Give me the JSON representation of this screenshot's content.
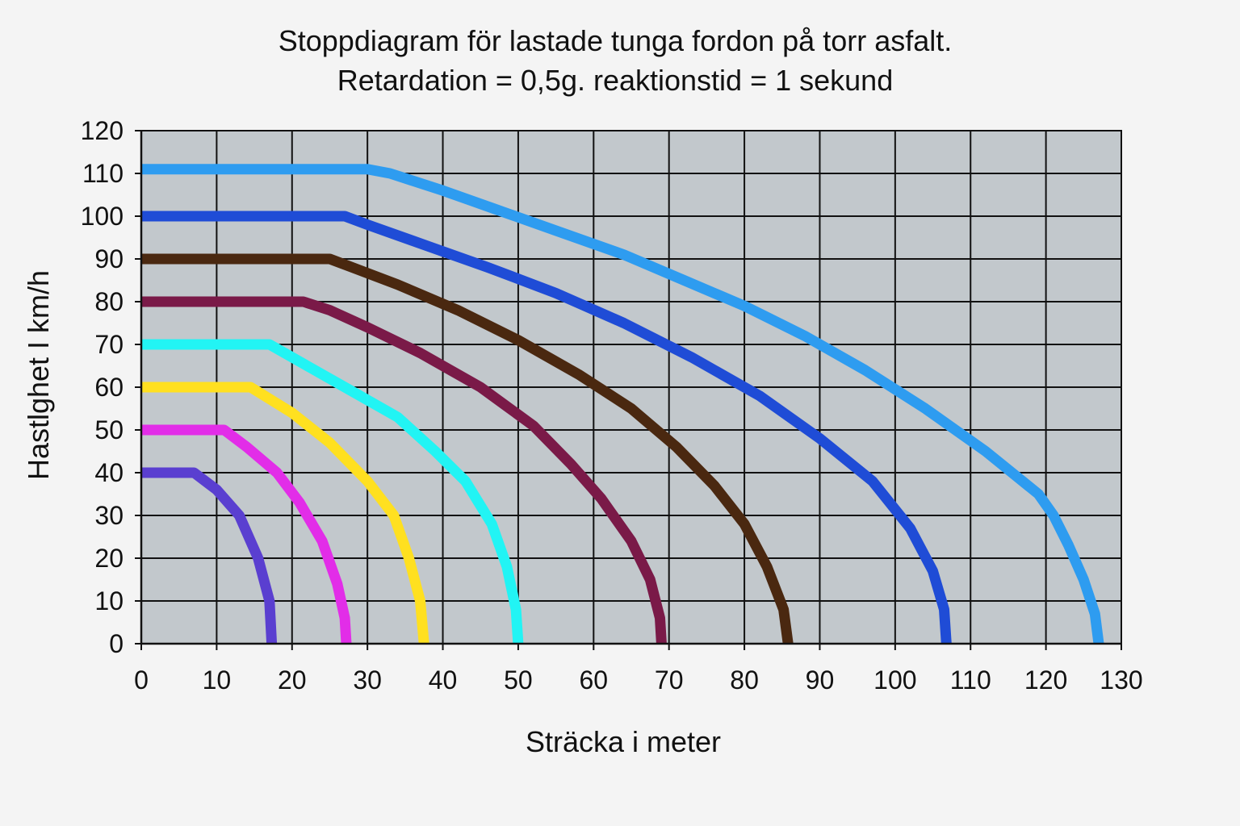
{
  "chart_data": {
    "type": "line",
    "title": "Stoppdiagram för lastade tunga fordon på torr asfalt.",
    "subtitle": "Retardation = 0,5g. reaktionstid = 1 sekund",
    "xlabel": "Sträcka i meter",
    "ylabel": "Hastlghet I km/h",
    "xlim": [
      0,
      130
    ],
    "ylim": [
      0,
      120
    ],
    "x_ticks": [
      "0",
      "10",
      "20",
      "30",
      "40",
      "50",
      "60",
      "70",
      "80",
      "90",
      "100",
      "110",
      "120",
      "130"
    ],
    "y_ticks": [
      "0",
      "10",
      "20",
      "30",
      "40",
      "50",
      "60",
      "70",
      "80",
      "90",
      "100",
      "110",
      "120"
    ],
    "grid": true,
    "background": "#c2c8cc",
    "series": [
      {
        "color": "#5a3fd0",
        "points": [
          [
            0,
            40
          ],
          [
            7,
            40
          ],
          [
            10,
            36
          ],
          [
            13,
            30
          ],
          [
            15.5,
            20
          ],
          [
            17,
            10
          ],
          [
            17.3,
            0
          ]
        ]
      },
      {
        "color": "#e22de8",
        "points": [
          [
            0,
            50
          ],
          [
            11,
            50
          ],
          [
            14,
            46
          ],
          [
            18,
            40
          ],
          [
            21,
            33
          ],
          [
            24,
            24
          ],
          [
            26,
            14
          ],
          [
            27,
            6
          ],
          [
            27.2,
            0
          ]
        ]
      },
      {
        "color": "#ffe020",
        "points": [
          [
            0,
            60
          ],
          [
            14.5,
            60
          ],
          [
            20,
            54
          ],
          [
            25,
            47
          ],
          [
            30,
            38
          ],
          [
            33.5,
            30
          ],
          [
            35.5,
            20
          ],
          [
            37,
            10
          ],
          [
            37.5,
            0
          ]
        ]
      },
      {
        "color": "#22f4f4",
        "points": [
          [
            0,
            70
          ],
          [
            17,
            70
          ],
          [
            22,
            65
          ],
          [
            28,
            59
          ],
          [
            34,
            53
          ],
          [
            39,
            45
          ],
          [
            43,
            38
          ],
          [
            46.5,
            28
          ],
          [
            48.5,
            18
          ],
          [
            49.7,
            8
          ],
          [
            50,
            0
          ]
        ]
      },
      {
        "color": "#7a1a48",
        "points": [
          [
            0,
            80
          ],
          [
            21.5,
            80
          ],
          [
            25,
            78
          ],
          [
            30,
            74
          ],
          [
            37,
            68
          ],
          [
            45,
            60
          ],
          [
            52,
            51
          ],
          [
            57,
            42
          ],
          [
            61,
            34
          ],
          [
            65,
            24
          ],
          [
            67.5,
            15
          ],
          [
            68.8,
            6
          ],
          [
            69,
            0
          ]
        ]
      },
      {
        "color": "#4a2810",
        "points": [
          [
            0,
            90
          ],
          [
            25,
            90
          ],
          [
            28,
            88
          ],
          [
            34,
            84
          ],
          [
            42,
            78
          ],
          [
            50,
            71
          ],
          [
            58,
            63
          ],
          [
            65,
            55
          ],
          [
            71,
            46
          ],
          [
            76,
            37
          ],
          [
            80,
            28
          ],
          [
            83,
            18
          ],
          [
            85.2,
            8
          ],
          [
            85.8,
            0
          ]
        ]
      },
      {
        "color": "#1f4cd6",
        "points": [
          [
            0,
            100
          ],
          [
            27,
            100
          ],
          [
            30,
            98
          ],
          [
            38,
            93
          ],
          [
            46,
            88
          ],
          [
            55,
            82
          ],
          [
            64,
            75
          ],
          [
            73,
            67
          ],
          [
            82,
            58
          ],
          [
            90,
            48
          ],
          [
            97,
            38
          ],
          [
            102,
            27
          ],
          [
            105,
            17
          ],
          [
            106.5,
            8
          ],
          [
            106.8,
            0
          ]
        ]
      },
      {
        "color": "#2e9cf0",
        "points": [
          [
            0,
            111
          ],
          [
            30,
            111
          ],
          [
            33,
            110
          ],
          [
            40,
            106
          ],
          [
            48,
            101
          ],
          [
            56,
            96
          ],
          [
            64,
            91
          ],
          [
            72,
            85
          ],
          [
            80,
            79
          ],
          [
            88,
            72
          ],
          [
            96,
            64
          ],
          [
            104,
            55
          ],
          [
            112,
            45
          ],
          [
            119,
            35
          ],
          [
            121,
            30
          ],
          [
            123,
            23
          ],
          [
            125,
            15
          ],
          [
            126.5,
            7
          ],
          [
            127,
            0
          ]
        ]
      }
    ]
  }
}
